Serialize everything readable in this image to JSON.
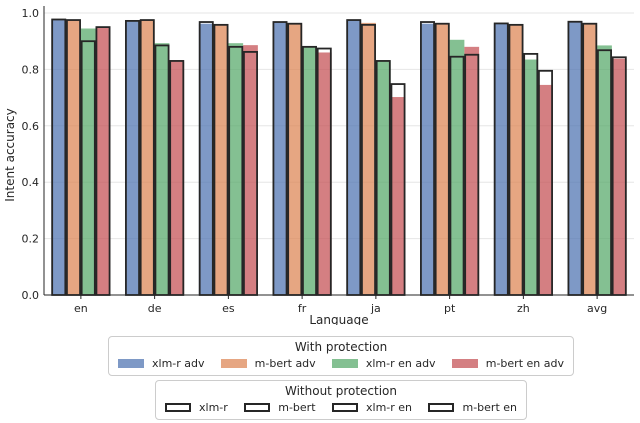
{
  "chart_data": {
    "type": "bar",
    "xlabel": "Language",
    "ylabel": "Intent accuracy",
    "ylim": [
      0,
      1.0
    ],
    "yticks": [
      "0.0",
      "0.2",
      "0.4",
      "0.6",
      "0.8",
      "1.0"
    ],
    "categories": [
      "en",
      "de",
      "es",
      "fr",
      "ja",
      "pt",
      "zh",
      "avg"
    ],
    "grid": "horizontal",
    "with_protection": {
      "title": "With protection",
      "series": [
        {
          "name": "xlm-r adv",
          "color": "#4c72b0",
          "values": [
            0.977,
            0.972,
            0.962,
            0.968,
            0.975,
            0.962,
            0.963,
            0.969
          ]
        },
        {
          "name": "m-bert adv",
          "color": "#dd8452",
          "values": [
            0.975,
            0.975,
            0.958,
            0.962,
            0.965,
            0.962,
            0.96,
            0.964
          ]
        },
        {
          "name": "xlm-r en adv",
          "color": "#55a868",
          "values": [
            0.945,
            0.893,
            0.893,
            0.88,
            0.83,
            0.905,
            0.835,
            0.885
          ]
        },
        {
          "name": "m-bert en adv",
          "color": "#c44e52",
          "values": [
            0.95,
            0.828,
            0.886,
            0.86,
            0.702,
            0.88,
            0.745,
            0.838
          ]
        }
      ]
    },
    "without_protection": {
      "title": "Without protection",
      "series": [
        {
          "name": "xlm-r",
          "values": [
            0.977,
            0.972,
            0.968,
            0.968,
            0.975,
            0.968,
            0.963,
            0.969
          ]
        },
        {
          "name": "m-bert",
          "values": [
            0.975,
            0.975,
            0.958,
            0.962,
            0.958,
            0.962,
            0.958,
            0.962
          ]
        },
        {
          "name": "xlm-r en",
          "values": [
            0.9,
            0.885,
            0.88,
            0.88,
            0.83,
            0.845,
            0.855,
            0.868
          ]
        },
        {
          "name": "m-bert en",
          "values": [
            0.95,
            0.83,
            0.862,
            0.874,
            0.748,
            0.852,
            0.795,
            0.843
          ]
        }
      ]
    }
  }
}
